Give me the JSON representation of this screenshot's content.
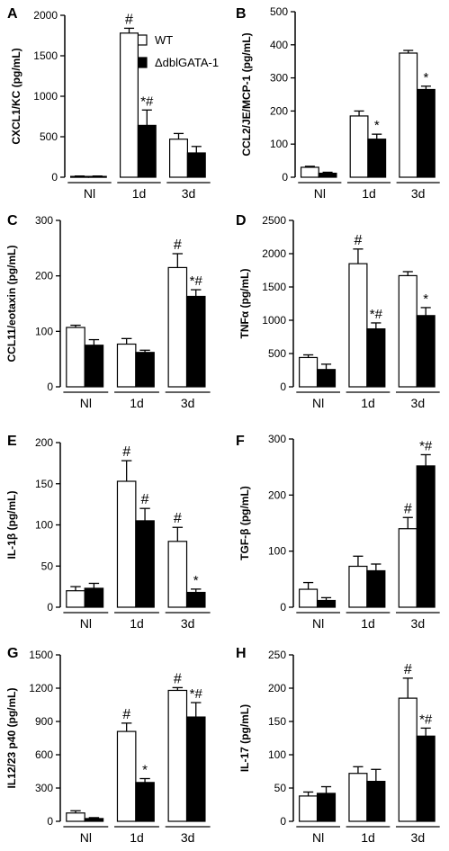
{
  "legend": {
    "entries": [
      {
        "label": "WT",
        "color": "#ffffff"
      },
      {
        "label": "ΔdblGATA-1",
        "color": "#000000"
      }
    ]
  },
  "chart_data": [
    {
      "type": "bar",
      "panel": "A",
      "ylabel": "CXCL1/KC (pg/mL)",
      "ylim": [
        0,
        2000
      ],
      "yticks": [
        0,
        500,
        1000,
        1500,
        2000
      ],
      "categories": [
        "Nl",
        "1d",
        "3d"
      ],
      "series": [
        {
          "name": "WT",
          "values": [
            10,
            1780,
            470
          ],
          "errors": [
            5,
            60,
            70
          ]
        },
        {
          "name": "ΔdblGATA-1",
          "values": [
            10,
            640,
            300
          ],
          "errors": [
            5,
            190,
            80
          ]
        }
      ],
      "annotations": [
        {
          "series": 0,
          "category": 1,
          "text": "#"
        },
        {
          "series": 1,
          "category": 1,
          "text": "*#"
        }
      ]
    },
    {
      "type": "bar",
      "panel": "B",
      "ylabel": "CCL2/JE/MCP-1 (pg/mL)",
      "ylim": [
        0,
        500
      ],
      "yticks": [
        0,
        100,
        200,
        300,
        400,
        500
      ],
      "categories": [
        "Nl",
        "1d",
        "3d"
      ],
      "series": [
        {
          "name": "WT",
          "values": [
            30,
            185,
            375
          ],
          "errors": [
            3,
            15,
            8
          ]
        },
        {
          "name": "ΔdblGATA-1",
          "values": [
            12,
            115,
            265
          ],
          "errors": [
            3,
            15,
            10
          ]
        }
      ],
      "annotations": [
        {
          "series": 1,
          "category": 1,
          "text": "*"
        },
        {
          "series": 1,
          "category": 2,
          "text": "*"
        }
      ]
    },
    {
      "type": "bar",
      "panel": "C",
      "ylabel": "CCL11/eotaxin (pg/mL)",
      "ylim": [
        0,
        300
      ],
      "yticks": [
        0,
        100,
        200,
        300
      ],
      "categories": [
        "Nl",
        "1d",
        "3d"
      ],
      "series": [
        {
          "name": "WT",
          "values": [
            107,
            77,
            215
          ],
          "errors": [
            4,
            10,
            25
          ]
        },
        {
          "name": "ΔdblGATA-1",
          "values": [
            75,
            62,
            163
          ],
          "errors": [
            10,
            4,
            12
          ]
        }
      ],
      "annotations": [
        {
          "series": 0,
          "category": 2,
          "text": "#"
        },
        {
          "series": 1,
          "category": 2,
          "text": "*#"
        }
      ]
    },
    {
      "type": "bar",
      "panel": "D",
      "ylabel": "TNFα (pg/mL)",
      "ylim": [
        0,
        2500
      ],
      "yticks": [
        0,
        500,
        1000,
        1500,
        2000,
        2500
      ],
      "categories": [
        "Nl",
        "1d",
        "3d"
      ],
      "series": [
        {
          "name": "WT",
          "values": [
            440,
            1850,
            1670
          ],
          "errors": [
            40,
            220,
            60
          ]
        },
        {
          "name": "ΔdblGATA-1",
          "values": [
            260,
            870,
            1070
          ],
          "errors": [
            80,
            90,
            120
          ]
        }
      ],
      "annotations": [
        {
          "series": 0,
          "category": 1,
          "text": "#"
        },
        {
          "series": 1,
          "category": 1,
          "text": "*#"
        },
        {
          "series": 1,
          "category": 2,
          "text": "*"
        }
      ]
    },
    {
      "type": "bar",
      "panel": "E",
      "ylabel": "IL-1β (pg/mL)",
      "ylim": [
        0,
        200
      ],
      "yticks": [
        0,
        50,
        100,
        150,
        200
      ],
      "categories": [
        "Nl",
        "1d",
        "3d"
      ],
      "series": [
        {
          "name": "WT",
          "values": [
            20,
            153,
            80
          ],
          "errors": [
            5,
            25,
            17
          ]
        },
        {
          "name": "ΔdblGATA-1",
          "values": [
            23,
            105,
            18
          ],
          "errors": [
            6,
            15,
            4
          ]
        }
      ],
      "annotations": [
        {
          "series": 0,
          "category": 1,
          "text": "#"
        },
        {
          "series": 1,
          "category": 1,
          "text": "#"
        },
        {
          "series": 0,
          "category": 2,
          "text": "#"
        },
        {
          "series": 1,
          "category": 2,
          "text": "*"
        }
      ]
    },
    {
      "type": "bar",
      "panel": "F",
      "ylabel": "TGF-β (pg/mL)",
      "ylim": [
        0,
        300
      ],
      "yticks": [
        0,
        100,
        200,
        300
      ],
      "categories": [
        "Nl",
        "1d",
        "3d"
      ],
      "series": [
        {
          "name": "WT",
          "values": [
            32,
            73,
            140
          ],
          "errors": [
            12,
            18,
            20
          ]
        },
        {
          "name": "ΔdblGATA-1",
          "values": [
            12,
            65,
            252
          ],
          "errors": [
            5,
            12,
            20
          ]
        }
      ],
      "annotations": [
        {
          "series": 0,
          "category": 2,
          "text": "#"
        },
        {
          "series": 1,
          "category": 2,
          "text": "*#"
        }
      ]
    },
    {
      "type": "bar",
      "panel": "G",
      "ylabel": "IL12/23 p40 (pg/mL)",
      "ylim": [
        0,
        1500
      ],
      "yticks": [
        0,
        300,
        600,
        900,
        1200,
        1500
      ],
      "categories": [
        "Nl",
        "1d",
        "3d"
      ],
      "series": [
        {
          "name": "WT",
          "values": [
            75,
            810,
            1180
          ],
          "errors": [
            20,
            75,
            25
          ]
        },
        {
          "name": "ΔdblGATA-1",
          "values": [
            25,
            350,
            940
          ],
          "errors": [
            8,
            35,
            130
          ]
        }
      ],
      "annotations": [
        {
          "series": 0,
          "category": 1,
          "text": "#"
        },
        {
          "series": 1,
          "category": 1,
          "text": "*"
        },
        {
          "series": 0,
          "category": 2,
          "text": "#"
        },
        {
          "series": 1,
          "category": 2,
          "text": "*#"
        }
      ]
    },
    {
      "type": "bar",
      "panel": "H",
      "ylabel": "IL-17 (pg/mL)",
      "ylim": [
        0,
        250
      ],
      "yticks": [
        0,
        50,
        100,
        150,
        200,
        250
      ],
      "categories": [
        "Nl",
        "1d",
        "3d"
      ],
      "series": [
        {
          "name": "WT",
          "values": [
            38,
            72,
            185
          ],
          "errors": [
            6,
            10,
            30
          ]
        },
        {
          "name": "ΔdblGATA-1",
          "values": [
            42,
            60,
            128
          ],
          "errors": [
            10,
            18,
            12
          ]
        }
      ],
      "annotations": [
        {
          "series": 0,
          "category": 2,
          "text": "#"
        },
        {
          "series": 1,
          "category": 2,
          "text": "*#"
        }
      ]
    }
  ]
}
